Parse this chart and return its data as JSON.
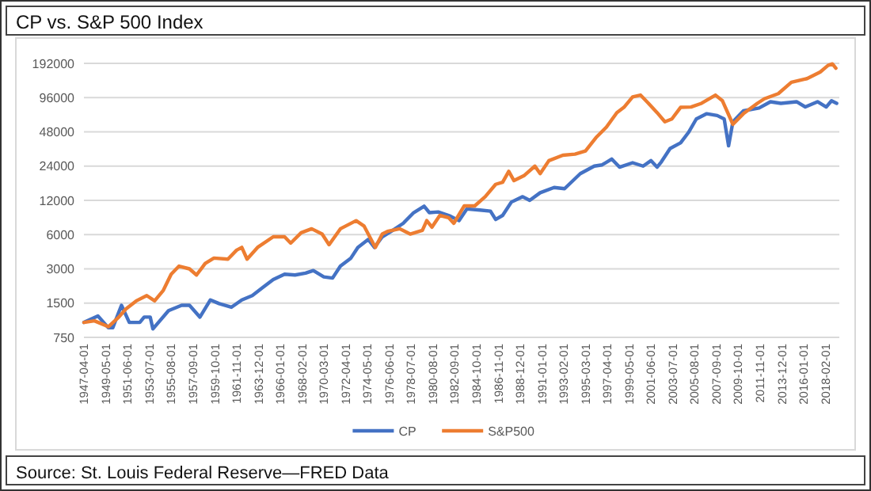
{
  "chart_data": {
    "type": "line",
    "title": "CP vs. S&P 500 Index",
    "annotations": [
      "Source: St. Louis Federal Reserve—FRED Data"
    ],
    "log": true,
    "grid": "y",
    "legend": "bottom",
    "ylim": [
      750,
      192000
    ],
    "yticks": [
      750,
      1500,
      3000,
      6000,
      12000,
      24000,
      48000,
      96000,
      192000
    ],
    "xlim": [
      "1947-04",
      "2019-06"
    ],
    "xticks": [
      "1947-04-01",
      "1949-05-01",
      "1951-06-01",
      "1953-07-01",
      "1955-08-01",
      "1957-09-01",
      "1959-10-01",
      "1961-11-01",
      "1963-12-01",
      "1966-01-01",
      "1968-02-01",
      "1970-03-01",
      "1972-04-01",
      "1974-05-01",
      "1976-06-01",
      "1978-07-01",
      "1980-08-01",
      "1982-09-01",
      "1984-10-01",
      "1986-11-01",
      "1988-12-01",
      "1991-01-01",
      "1993-02-01",
      "1995-03-01",
      "1997-04-01",
      "1999-05-01",
      "2001-06-01",
      "2003-07-01",
      "2005-08-01",
      "2007-09-01",
      "2009-10-01",
      "2011-11-01",
      "2013-12-01",
      "2016-01-01",
      "2018-02-01"
    ],
    "series": [
      {
        "name": "CP",
        "color": "#4472c4",
        "x": [
          "1947-04",
          "1948-08",
          "1949-08",
          "1950-01",
          "1950-11",
          "1951-08",
          "1952-08",
          "1953-01",
          "1953-08",
          "1953-11",
          "1955-05",
          "1956-08",
          "1957-05",
          "1958-05",
          "1959-05",
          "1960-03",
          "1961-05",
          "1962-05",
          "1963-05",
          "1964-05",
          "1965-05",
          "1966-06",
          "1967-06",
          "1968-06",
          "1969-03",
          "1970-03",
          "1971-01",
          "1971-10",
          "1972-10",
          "1973-06",
          "1974-06",
          "1975-01",
          "1975-10",
          "1976-10",
          "1977-10",
          "1978-10",
          "1979-10",
          "1980-04",
          "1981-02",
          "1982-04",
          "1983-02",
          "1983-11",
          "1985-02",
          "1986-02",
          "1986-08",
          "1987-04",
          "1988-02",
          "1989-03",
          "1989-11",
          "1990-11",
          "1992-03",
          "1993-03",
          "1994-09",
          "1996-01",
          "1996-10",
          "1997-09",
          "1998-06",
          "1999-09",
          "2000-09",
          "2001-06",
          "2002-01",
          "2002-06",
          "2003-04",
          "2004-04",
          "2005-01",
          "2005-10",
          "2006-10",
          "2007-10",
          "2008-06",
          "2008-11",
          "2009-04",
          "2010-04",
          "2011-10",
          "2012-11",
          "2013-11",
          "2015-05",
          "2016-03",
          "2017-05",
          "2018-03",
          "2018-09",
          "2019-03"
        ],
        "values": [
          1015,
          1157,
          911,
          911,
          1436,
          1015,
          1015,
          1130,
          1130,
          890,
          1288,
          1436,
          1436,
          1130,
          1601,
          1485,
          1380,
          1601,
          1748,
          2055,
          2415,
          2690,
          2650,
          2750,
          2900,
          2550,
          2490,
          3170,
          3730,
          4630,
          5440,
          4630,
          5740,
          6540,
          7540,
          9360,
          10660,
          9360,
          9500,
          8720,
          7960,
          10090,
          9870,
          9650,
          8140,
          8850,
          11600,
          12930,
          12000,
          14000,
          15560,
          15200,
          20600,
          24000,
          24600,
          27700,
          23500,
          25700,
          24000,
          26800,
          23500,
          26200,
          34300,
          38400,
          47400,
          62300,
          69300,
          66800,
          62300,
          36200,
          58900,
          73400,
          77700,
          88300,
          85500,
          88300,
          79400,
          88300,
          79400,
          90000,
          85500
        ]
      },
      {
        "name": "S&P500",
        "color": "#ed7d31",
        "x": [
          "1947-04",
          "1948-04",
          "1949-08",
          "1950-08",
          "1951-04",
          "1952-04",
          "1953-04",
          "1954-01",
          "1954-11",
          "1955-08",
          "1956-05",
          "1957-05",
          "1958-01",
          "1958-11",
          "1959-09",
          "1961-01",
          "1961-11",
          "1962-05",
          "1962-11",
          "1963-11",
          "1965-05",
          "1966-06",
          "1967-01",
          "1968-01",
          "1969-01",
          "1970-01",
          "1970-09",
          "1971-10",
          "1973-04",
          "1974-01",
          "1975-02",
          "1975-10",
          "1976-04",
          "1977-06",
          "1978-06",
          "1979-08",
          "1980-01",
          "1980-07",
          "1981-04",
          "1982-02",
          "1982-08",
          "1983-08",
          "1984-08",
          "1985-08",
          "1986-08",
          "1987-04",
          "1987-11",
          "1988-05",
          "1989-05",
          "1990-05",
          "1990-11",
          "1991-09",
          "1993-01",
          "1994-03",
          "1995-03",
          "1996-03",
          "1997-03",
          "1998-03",
          "1998-11",
          "1999-09",
          "2000-06",
          "2001-03",
          "2002-01",
          "2002-10",
          "2003-06",
          "2004-04",
          "2005-04",
          "2006-04",
          "2007-08",
          "2008-04",
          "2009-04",
          "2010-04",
          "2011-08",
          "2012-04",
          "2013-08",
          "2014-11",
          "2016-05",
          "2017-08",
          "2018-05",
          "2018-10",
          "2019-02"
        ],
        "values": [
          1015,
          1048,
          930,
          1130,
          1330,
          1570,
          1748,
          1570,
          1945,
          2690,
          3170,
          3000,
          2650,
          3350,
          3730,
          3650,
          4380,
          4630,
          3650,
          4630,
          5740,
          5740,
          5050,
          6230,
          6750,
          6070,
          4890,
          6750,
          7960,
          7150,
          4630,
          6070,
          6400,
          6750,
          6070,
          6540,
          7960,
          6980,
          8850,
          8450,
          7540,
          10730,
          10730,
          12930,
          16600,
          17300,
          21600,
          17900,
          19900,
          24000,
          20600,
          26800,
          29900,
          30600,
          32600,
          42700,
          52800,
          70900,
          78800,
          97500,
          101000,
          85900,
          70900,
          58900,
          62300,
          78800,
          79400,
          85500,
          101000,
          90000,
          55900,
          69300,
          85500,
          93700,
          104000,
          131000,
          141000,
          161000,
          184000,
          190000,
          174000
        ]
      }
    ]
  }
}
